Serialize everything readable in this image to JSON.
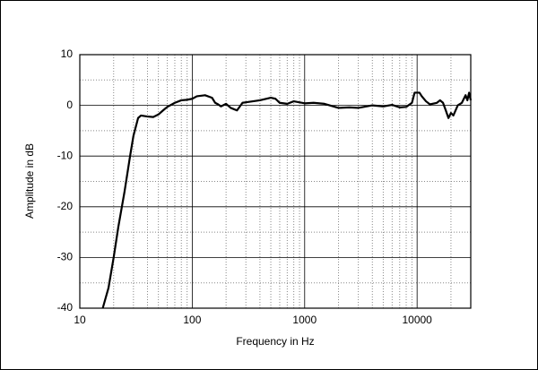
{
  "chart_data": {
    "type": "line",
    "xlabel": "Frequency in Hz",
    "ylabel": "Amplitude in dB",
    "xscale": "log",
    "grid": true,
    "color": "#000000",
    "xlim": [
      10,
      30000
    ],
    "xticks": [
      10,
      100,
      1000,
      10000
    ],
    "ylim": [
      -40,
      10
    ],
    "yticks": [
      -40,
      -30,
      -20,
      -10,
      0,
      10
    ],
    "x": [
      16,
      18,
      20,
      22,
      25,
      28,
      30,
      33,
      35,
      40,
      45,
      50,
      55,
      60,
      70,
      80,
      90,
      100,
      110,
      130,
      150,
      160,
      170,
      180,
      200,
      220,
      250,
      280,
      300,
      400,
      500,
      550,
      600,
      700,
      800,
      1000,
      1200,
      1500,
      2000,
      2500,
      3000,
      4000,
      5000,
      6000,
      7000,
      8000,
      9000,
      9500,
      10500,
      11000,
      12000,
      13000,
      15000,
      16000,
      17000,
      18000,
      19000,
      20000,
      21000,
      23000,
      25000,
      27000,
      28000,
      29000,
      30000
    ],
    "values": [
      -40,
      -36,
      -30,
      -24,
      -17,
      -10,
      -6,
      -2.5,
      -2,
      -2.2,
      -2.3,
      -1.8,
      -1,
      -0.3,
      0.5,
      1,
      1.1,
      1.3,
      1.8,
      2,
      1.5,
      0.5,
      0.2,
      -0.2,
      0.3,
      -0.5,
      -1,
      0.5,
      0.6,
      1,
      1.5,
      1.3,
      0.5,
      0.3,
      0.8,
      0.4,
      0.5,
      0.3,
      -0.5,
      -0.4,
      -0.5,
      0,
      -0.2,
      0.1,
      -0.4,
      -0.3,
      0.5,
      2.5,
      2.5,
      1.8,
      0.8,
      0.2,
      0.5,
      1,
      0.5,
      -1,
      -2.5,
      -1.5,
      -2,
      0,
      0.5,
      2,
      1,
      2.5,
      1
    ]
  }
}
